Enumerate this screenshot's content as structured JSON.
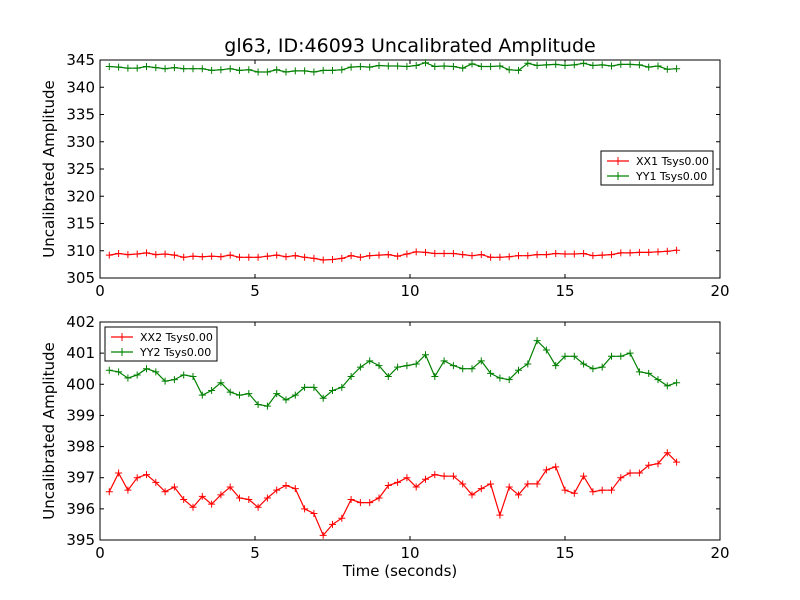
{
  "figure": {
    "title": "gl63, ID:46093 Uncalibrated Amplitude"
  },
  "colors": {
    "red": "#ff0000",
    "green": "#008000"
  },
  "chart_data": [
    {
      "type": "line",
      "title": "gl63, ID:46093 Uncalibrated Amplitude",
      "xlabel": "",
      "ylabel": "Uncalibrated Amplitude",
      "xlim": [
        0,
        20
      ],
      "ylim": [
        305,
        345
      ],
      "xticks": [
        0,
        5,
        10,
        15,
        20
      ],
      "yticks": [
        305,
        310,
        315,
        320,
        325,
        330,
        335,
        340,
        345
      ],
      "legend_position": "center-right",
      "x": [
        0.3,
        0.6,
        0.9,
        1.2,
        1.5,
        1.8,
        2.1,
        2.4,
        2.7,
        3.0,
        3.3,
        3.6,
        3.9,
        4.2,
        4.5,
        4.8,
        5.1,
        5.4,
        5.7,
        6.0,
        6.3,
        6.6,
        6.9,
        7.2,
        7.5,
        7.8,
        8.1,
        8.4,
        8.7,
        9.0,
        9.3,
        9.6,
        9.9,
        10.2,
        10.5,
        10.8,
        11.1,
        11.4,
        11.7,
        12.0,
        12.3,
        12.6,
        12.9,
        13.2,
        13.5,
        13.8,
        14.1,
        14.4,
        14.7,
        15.0,
        15.3,
        15.6,
        15.9,
        16.2,
        16.5,
        16.8,
        17.1,
        17.4,
        17.7,
        18.0,
        18.3,
        18.6
      ],
      "series": [
        {
          "name": "XX1 Tsys0.00",
          "color": "#ff0000",
          "values": [
            309.2,
            309.5,
            309.3,
            309.4,
            309.6,
            309.3,
            309.4,
            309.2,
            308.8,
            309.0,
            308.9,
            309.0,
            308.9,
            309.2,
            308.8,
            308.8,
            308.8,
            309.0,
            309.2,
            308.9,
            309.1,
            308.8,
            308.6,
            308.3,
            308.4,
            308.6,
            309.1,
            308.8,
            309.1,
            309.2,
            309.3,
            309.0,
            309.4,
            309.8,
            309.7,
            309.5,
            309.5,
            309.5,
            309.3,
            309.1,
            309.3,
            308.8,
            308.8,
            308.9,
            309.1,
            309.1,
            309.3,
            309.3,
            309.5,
            309.4,
            309.4,
            309.5,
            309.1,
            309.2,
            309.3,
            309.6,
            309.6,
            309.7,
            309.7,
            309.8,
            309.9,
            310.1
          ]
        },
        {
          "name": "YY1 Tsys0.00",
          "color": "#008000",
          "values": [
            343.8,
            343.7,
            343.5,
            343.5,
            343.8,
            343.6,
            343.4,
            343.6,
            343.4,
            343.4,
            343.4,
            343.1,
            343.2,
            343.4,
            343.1,
            343.2,
            342.8,
            342.8,
            343.2,
            342.8,
            343.0,
            343.0,
            342.8,
            343.1,
            343.1,
            343.2,
            343.7,
            343.8,
            343.7,
            344.0,
            343.9,
            343.9,
            343.8,
            344.0,
            344.5,
            343.8,
            343.9,
            343.8,
            343.5,
            344.3,
            343.8,
            343.8,
            343.9,
            343.2,
            343.1,
            344.4,
            344.0,
            344.1,
            344.2,
            344.0,
            344.1,
            344.4,
            344.0,
            344.1,
            343.9,
            344.2,
            344.2,
            344.1,
            343.7,
            343.9,
            343.3,
            343.4
          ]
        }
      ]
    },
    {
      "type": "line",
      "title": "",
      "xlabel": "Time (seconds)",
      "ylabel": "Uncalibrated Amplitude",
      "xlim": [
        0,
        20
      ],
      "ylim": [
        395,
        402
      ],
      "xticks": [
        0,
        5,
        10,
        15,
        20
      ],
      "yticks": [
        395,
        396,
        397,
        398,
        399,
        400,
        401,
        402
      ],
      "legend_position": "top-left",
      "x": [
        0.3,
        0.6,
        0.9,
        1.2,
        1.5,
        1.8,
        2.1,
        2.4,
        2.7,
        3.0,
        3.3,
        3.6,
        3.9,
        4.2,
        4.5,
        4.8,
        5.1,
        5.4,
        5.7,
        6.0,
        6.3,
        6.6,
        6.9,
        7.2,
        7.5,
        7.8,
        8.1,
        8.4,
        8.7,
        9.0,
        9.3,
        9.6,
        9.9,
        10.2,
        10.5,
        10.8,
        11.1,
        11.4,
        11.7,
        12.0,
        12.3,
        12.6,
        12.9,
        13.2,
        13.5,
        13.8,
        14.1,
        14.4,
        14.7,
        15.0,
        15.3,
        15.6,
        15.9,
        16.2,
        16.5,
        16.8,
        17.1,
        17.4,
        17.7,
        18.0,
        18.3,
        18.6
      ],
      "series": [
        {
          "name": "XX2 Tsys0.00",
          "color": "#ff0000",
          "values": [
            396.55,
            397.15,
            396.6,
            397.0,
            397.1,
            396.85,
            396.55,
            396.7,
            396.3,
            396.05,
            396.4,
            396.15,
            396.45,
            396.7,
            396.35,
            396.3,
            396.05,
            396.35,
            396.6,
            396.75,
            396.65,
            396.0,
            395.85,
            395.15,
            395.5,
            395.7,
            396.3,
            396.2,
            396.2,
            396.35,
            396.75,
            396.85,
            397.0,
            396.7,
            396.95,
            397.1,
            397.05,
            397.05,
            396.8,
            396.45,
            396.65,
            396.8,
            395.8,
            396.7,
            396.45,
            396.8,
            396.8,
            397.25,
            397.35,
            396.6,
            396.5,
            397.05,
            396.55,
            396.6,
            396.6,
            397.0,
            397.15,
            397.15,
            397.4,
            397.45,
            397.8,
            397.5
          ]
        },
        {
          "name": "YY2 Tsys0.00",
          "color": "#008000",
          "values": [
            400.45,
            400.4,
            400.2,
            400.3,
            400.5,
            400.4,
            400.1,
            400.15,
            400.3,
            400.25,
            399.65,
            399.8,
            400.05,
            399.75,
            399.65,
            399.7,
            399.35,
            399.3,
            399.7,
            399.5,
            399.65,
            399.9,
            399.9,
            399.55,
            399.8,
            399.9,
            400.25,
            400.55,
            400.75,
            400.6,
            400.25,
            400.55,
            400.6,
            400.65,
            400.95,
            400.25,
            400.75,
            400.6,
            400.5,
            400.5,
            400.75,
            400.35,
            400.2,
            400.15,
            400.45,
            400.65,
            401.4,
            401.1,
            400.6,
            400.9,
            400.9,
            400.65,
            400.5,
            400.55,
            400.9,
            400.9,
            401.0,
            400.4,
            400.35,
            400.15,
            399.95,
            400.05
          ]
        }
      ]
    }
  ]
}
